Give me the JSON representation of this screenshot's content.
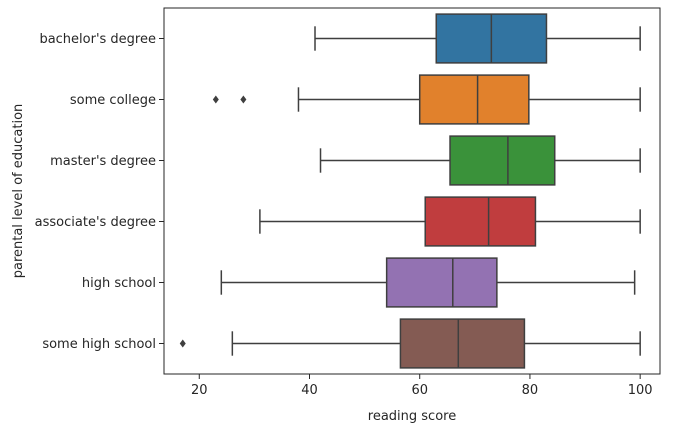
{
  "chart_data": {
    "type": "boxplot",
    "orientation": "horizontal",
    "xlabel": "reading score",
    "ylabel": "parental level of education",
    "xlim": [
      13.6,
      103.6
    ],
    "xticks": [
      20,
      40,
      60,
      80,
      100
    ],
    "grid": false,
    "categories": [
      "bachelor's degree",
      "some college",
      "master's degree",
      "associate's degree",
      "high school",
      "some high school"
    ],
    "boxes": [
      {
        "category": "bachelor's degree",
        "whisker_low": 41,
        "q1": 63,
        "median": 73,
        "q3": 83,
        "whisker_high": 100,
        "outliers": [],
        "color": "#3274a1"
      },
      {
        "category": "some college",
        "whisker_low": 38,
        "q1": 60,
        "median": 70.5,
        "q3": 79.8,
        "whisker_high": 100,
        "outliers": [
          23,
          28
        ],
        "color": "#e1812c"
      },
      {
        "category": "master's degree",
        "whisker_low": 42,
        "q1": 65.5,
        "median": 76,
        "q3": 84.5,
        "whisker_high": 100,
        "outliers": [],
        "color": "#3a923a"
      },
      {
        "category": "associate's degree",
        "whisker_low": 31,
        "q1": 61,
        "median": 72.5,
        "q3": 81,
        "whisker_high": 100,
        "outliers": [],
        "color": "#c03d3e"
      },
      {
        "category": "high school",
        "whisker_low": 24,
        "q1": 54,
        "median": 66,
        "q3": 74,
        "whisker_high": 99,
        "outliers": [],
        "color": "#9372b2"
      },
      {
        "category": "some high school",
        "whisker_low": 26,
        "q1": 56.5,
        "median": 67,
        "q3": 79,
        "whisker_high": 100,
        "outliers": [
          17
        ],
        "color": "#845b53"
      }
    ]
  }
}
